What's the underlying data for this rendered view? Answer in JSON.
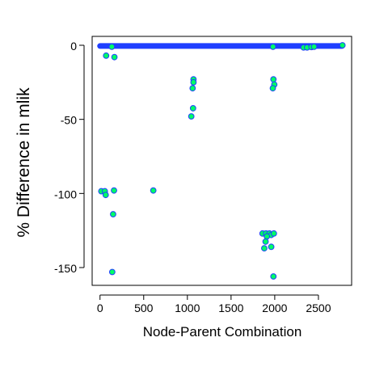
{
  "chart_data": {
    "type": "scatter",
    "title": "",
    "xlabel": "Node-Parent Combination",
    "ylabel": "% Difference in mlik",
    "xlim": [
      -90,
      2880
    ],
    "ylim": [
      -162,
      6
    ],
    "x_ticks": [
      0,
      500,
      1000,
      1500,
      2000,
      2500
    ],
    "y_ticks": [
      0,
      -50,
      -100,
      -150
    ],
    "x_tick_labels": [
      "0",
      "500",
      "1000",
      "1500",
      "2000",
      "2500"
    ],
    "y_tick_labels": [
      "0",
      "-50",
      "-100",
      "-150"
    ],
    "grid": false,
    "legend": "none",
    "colors": {
      "point_fill": "#00ff66",
      "point_edge": "#1f3fff",
      "band": "#1f3fff"
    },
    "near_zero_band": {
      "x_range": [
        0,
        2770
      ],
      "y_range": [
        -1,
        0
      ]
    },
    "points": [
      {
        "x": 70,
        "y": -7
      },
      {
        "x": 165,
        "y": -8
      },
      {
        "x": 135,
        "y": -1
      },
      {
        "x": 1980,
        "y": -1
      },
      {
        "x": 2330,
        "y": -1.5
      },
      {
        "x": 2370,
        "y": -1.5
      },
      {
        "x": 2420,
        "y": -1.2
      },
      {
        "x": 2450,
        "y": -1
      },
      {
        "x": 2775,
        "y": 0
      },
      {
        "x": 1070,
        "y": -23
      },
      {
        "x": 1070,
        "y": -25
      },
      {
        "x": 1060,
        "y": -29
      },
      {
        "x": 1065,
        "y": -42.5
      },
      {
        "x": 1045,
        "y": -48
      },
      {
        "x": 1985,
        "y": -23
      },
      {
        "x": 1995,
        "y": -26.5
      },
      {
        "x": 1978,
        "y": -29
      },
      {
        "x": 15,
        "y": -98.5
      },
      {
        "x": 55,
        "y": -98.5
      },
      {
        "x": 65,
        "y": -101
      },
      {
        "x": 160,
        "y": -98
      },
      {
        "x": 610,
        "y": -98
      },
      {
        "x": 150,
        "y": -114
      },
      {
        "x": 140,
        "y": -153
      },
      {
        "x": 1860,
        "y": -127
      },
      {
        "x": 1900,
        "y": -127
      },
      {
        "x": 1940,
        "y": -127
      },
      {
        "x": 1960,
        "y": -128
      },
      {
        "x": 1990,
        "y": -127
      },
      {
        "x": 1910,
        "y": -129
      },
      {
        "x": 1895,
        "y": -132.5
      },
      {
        "x": 1960,
        "y": -136
      },
      {
        "x": 1880,
        "y": -137
      },
      {
        "x": 1985,
        "y": -156
      }
    ]
  }
}
